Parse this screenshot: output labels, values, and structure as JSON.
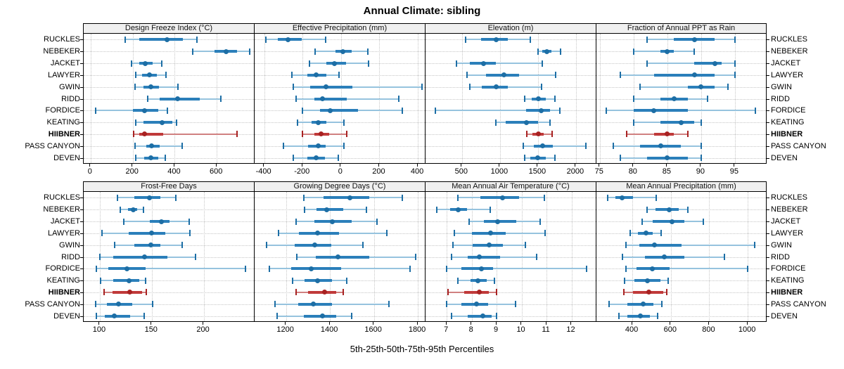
{
  "title": "Annual Climate: sibling",
  "caption": "5th-25th-50th-75th-95th Percentiles",
  "percentiles": [
    5,
    25,
    50,
    75,
    95
  ],
  "sites": [
    "RUCKLES",
    "NEBEKER",
    "JACKET",
    "LAWYER",
    "GWIN",
    "RIDD",
    "FORDICE",
    "KEATING",
    "HIIBNER",
    "PASS CANYON",
    "DEVEN"
  ],
  "highlight_site": "HIIBNER",
  "colors": {
    "normal_dot": "#1d6ea5",
    "normal_bar": "#2b7fba",
    "normal_range": "#96c3de",
    "highlight_dot": "#a82222",
    "highlight_bar": "#c03a3a",
    "highlight_range": "#d08080",
    "header_bg": "#f0f0f0",
    "grid": "#c6c6c6"
  },
  "chart_data": [
    {
      "type": "errorbar",
      "title": "Design Freeze Index (°C)",
      "row": 1,
      "xlim": [
        -33,
        780
      ],
      "ticks": [
        0,
        200,
        400,
        600
      ],
      "values": [
        [
          165,
          230,
          365,
          440,
          505
        ],
        [
          485,
          590,
          645,
          695,
          755
        ],
        [
          195,
          230,
          260,
          295,
          340
        ],
        [
          215,
          245,
          280,
          315,
          360
        ],
        [
          210,
          250,
          285,
          325,
          415
        ],
        [
          270,
          330,
          415,
          520,
          620
        ],
        [
          25,
          200,
          255,
          320,
          365
        ],
        [
          215,
          250,
          340,
          390,
          410
        ],
        [
          205,
          230,
          255,
          345,
          695
        ],
        [
          210,
          265,
          290,
          330,
          435
        ],
        [
          215,
          255,
          285,
          320,
          355
        ]
      ]
    },
    {
      "type": "errorbar",
      "title": "Effective Precipitation (mm)",
      "row": 1,
      "xlim": [
        -450,
        440
      ],
      "ticks": [
        -400,
        -200,
        0,
        200,
        400
      ],
      "values": [
        [
          -390,
          -330,
          -275,
          -205,
          -80
        ],
        [
          -135,
          -30,
          10,
          55,
          140
        ],
        [
          -165,
          -75,
          -35,
          25,
          145
        ],
        [
          -255,
          -175,
          -130,
          -75,
          -10
        ],
        [
          -250,
          -160,
          -80,
          60,
          420
        ],
        [
          -235,
          -140,
          -95,
          30,
          300
        ],
        [
          -200,
          -110,
          -55,
          90,
          320
        ],
        [
          -225,
          -155,
          -120,
          -75,
          15
        ],
        [
          -200,
          -140,
          -105,
          -60,
          30
        ],
        [
          -300,
          -170,
          -120,
          -80,
          15
        ],
        [
          -250,
          -175,
          -130,
          -85,
          -15
        ]
      ]
    },
    {
      "type": "errorbar",
      "title": "Elevation (m)",
      "row": 1,
      "xlim": [
        20,
        2270
      ],
      "ticks": [
        500,
        1000,
        1500,
        2000
      ],
      "values": [
        [
          550,
          750,
          950,
          1100,
          1400
        ],
        [
          1500,
          1560,
          1620,
          1680,
          1800
        ],
        [
          430,
          600,
          780,
          950,
          1560
        ],
        [
          570,
          820,
          1050,
          1250,
          1730
        ],
        [
          600,
          760,
          950,
          1100,
          1550
        ],
        [
          1330,
          1420,
          1510,
          1600,
          1720
        ],
        [
          150,
          1340,
          1545,
          1660,
          1790
        ],
        [
          950,
          1080,
          1350,
          1500,
          1660
        ],
        [
          1350,
          1430,
          1510,
          1580,
          1690
        ],
        [
          1310,
          1450,
          1560,
          1700,
          2130
        ],
        [
          1330,
          1400,
          1500,
          1600,
          1720
        ]
      ]
    },
    {
      "type": "errorbar",
      "title": "Fraction of Annual PPT as Rain",
      "row": 1,
      "xlim": [
        74.5,
        99.8
      ],
      "ticks": [
        75,
        80,
        85,
        90,
        95
      ],
      "values": [
        [
          82,
          86,
          89,
          92,
          95
        ],
        [
          80,
          84,
          85,
          86,
          89
        ],
        [
          82,
          89,
          92,
          93,
          95
        ],
        [
          78,
          83,
          89,
          92,
          95
        ],
        [
          81,
          88,
          90,
          92,
          94
        ],
        [
          80,
          84,
          86,
          88,
          91
        ],
        [
          76,
          80,
          83,
          88,
          98
        ],
        [
          80,
          84,
          87,
          89,
          90
        ],
        [
          79,
          83,
          85,
          86,
          88
        ],
        [
          77,
          81,
          84,
          87,
          90
        ],
        [
          78,
          82,
          85,
          88,
          90
        ]
      ]
    },
    {
      "type": "errorbar",
      "title": "Frost-Free Days",
      "row": 2,
      "xlim": [
        84.5,
        249
      ],
      "ticks": [
        100,
        150,
        200
      ],
      "values": [
        [
          117,
          133,
          148,
          158,
          173
        ],
        [
          120,
          127,
          132,
          136,
          142
        ],
        [
          123,
          148,
          159,
          167,
          186
        ],
        [
          102,
          128,
          150,
          163,
          187
        ],
        [
          114,
          133,
          149,
          158,
          179
        ],
        [
          100,
          113,
          143,
          165,
          192
        ],
        [
          97,
          108,
          126,
          144,
          240
        ],
        [
          101,
          113,
          128,
          138,
          144
        ],
        [
          104,
          112,
          129,
          141,
          145
        ],
        [
          96,
          107,
          118,
          131,
          151
        ],
        [
          97,
          105,
          114,
          129,
          143
        ]
      ]
    },
    {
      "type": "errorbar",
      "title": "Growing Degree Days (°C)",
      "row": 2,
      "xlim": [
        1057,
        1835
      ],
      "ticks": [
        1200,
        1400,
        1600,
        1800
      ],
      "values": [
        [
          1280,
          1370,
          1490,
          1580,
          1730
        ],
        [
          1285,
          1340,
          1385,
          1460,
          1565
        ],
        [
          1245,
          1330,
          1410,
          1500,
          1615
        ],
        [
          1165,
          1260,
          1345,
          1440,
          1660
        ],
        [
          1110,
          1240,
          1330,
          1405,
          1550
        ],
        [
          1250,
          1335,
          1435,
          1580,
          1790
        ],
        [
          1125,
          1225,
          1315,
          1450,
          1765
        ],
        [
          1230,
          1285,
          1345,
          1410,
          1475
        ],
        [
          1245,
          1300,
          1375,
          1430,
          1460
        ],
        [
          1150,
          1255,
          1325,
          1410,
          1670
        ],
        [
          1160,
          1280,
          1365,
          1430,
          1500
        ]
      ]
    },
    {
      "type": "errorbar",
      "title": "Mean Annual Air Temperature (°C)",
      "row": 2,
      "xlim": [
        6.15,
        13.0
      ],
      "ticks": [
        7,
        8,
        9,
        10,
        11,
        12
      ],
      "values": [
        [
          7.45,
          8.35,
          9.25,
          9.9,
          10.9
        ],
        [
          6.6,
          7.15,
          7.45,
          7.8,
          8.75
        ],
        [
          7.9,
          8.5,
          9.05,
          9.8,
          10.75
        ],
        [
          7.3,
          8.0,
          8.75,
          9.35,
          10.95
        ],
        [
          7.25,
          8.05,
          8.7,
          9.25,
          10.15
        ],
        [
          7.2,
          7.85,
          8.3,
          9.15,
          10.6
        ],
        [
          7.0,
          7.6,
          8.4,
          8.85,
          12.6
        ],
        [
          7.45,
          7.95,
          8.25,
          8.6,
          8.9
        ],
        [
          7.05,
          7.7,
          8.3,
          8.7,
          9.0
        ],
        [
          7.0,
          7.6,
          8.2,
          8.65,
          9.75
        ],
        [
          7.2,
          7.85,
          8.45,
          8.8,
          9.0
        ]
      ]
    },
    {
      "type": "errorbar",
      "title": "Mean Annual Precipitation (mm)",
      "row": 2,
      "xlim": [
        213,
        1102
      ],
      "ticks": [
        400,
        600,
        800,
        1000
      ],
      "values": [
        [
          270,
          310,
          345,
          405,
          525
        ],
        [
          475,
          520,
          590,
          640,
          690
        ],
        [
          450,
          505,
          605,
          670,
          770
        ],
        [
          390,
          430,
          470,
          505,
          550
        ],
        [
          365,
          435,
          515,
          655,
          1035
        ],
        [
          350,
          465,
          565,
          670,
          880
        ],
        [
          365,
          420,
          505,
          595,
          1000
        ],
        [
          360,
          410,
          480,
          545,
          585
        ],
        [
          355,
          405,
          485,
          560,
          580
        ],
        [
          280,
          375,
          455,
          510,
          555
        ],
        [
          330,
          375,
          440,
          490,
          530
        ]
      ]
    }
  ]
}
